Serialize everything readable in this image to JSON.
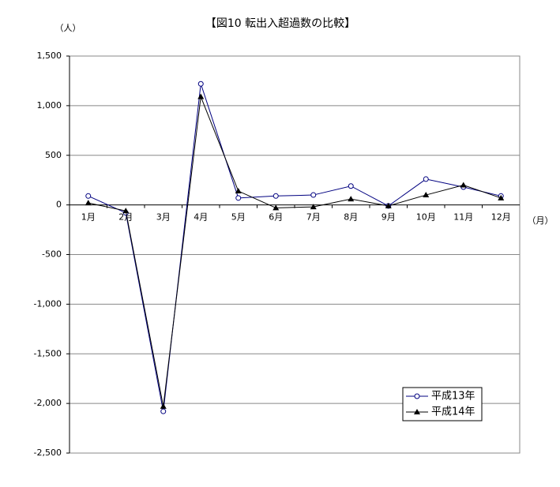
{
  "chart_data": {
    "type": "line",
    "title": "【図10 転出入超過数の比較】",
    "y_label": "（人）",
    "x_label": "（月）",
    "categories": [
      "1月",
      "2月",
      "3月",
      "4月",
      "5月",
      "6月",
      "7月",
      "8月",
      "9月",
      "10月",
      "11月",
      "12月"
    ],
    "series": [
      {
        "name": "平成13年",
        "color": "#000080",
        "marker": "circle",
        "values": [
          90,
          -80,
          -2080,
          1220,
          70,
          90,
          100,
          190,
          -10,
          260,
          180,
          90
        ]
      },
      {
        "name": "平成14年",
        "color": "#000000",
        "marker": "triangle",
        "values": [
          20,
          -60,
          -2030,
          1090,
          140,
          -30,
          -20,
          60,
          -10,
          100,
          200,
          70
        ]
      }
    ],
    "ylim": [
      -2500,
      1500
    ],
    "yticks": [
      {
        "value": -2500,
        "label": "-2,500"
      },
      {
        "value": -2000,
        "label": "-2,000"
      },
      {
        "value": -1500,
        "label": "-1,500"
      },
      {
        "value": -1000,
        "label": "-1,000"
      },
      -500,
      0,
      500,
      {
        "value": 1000,
        "label": "1,000"
      },
      {
        "value": 1500,
        "label": "1,500"
      }
    ],
    "grid": true,
    "legend": "lower right"
  }
}
